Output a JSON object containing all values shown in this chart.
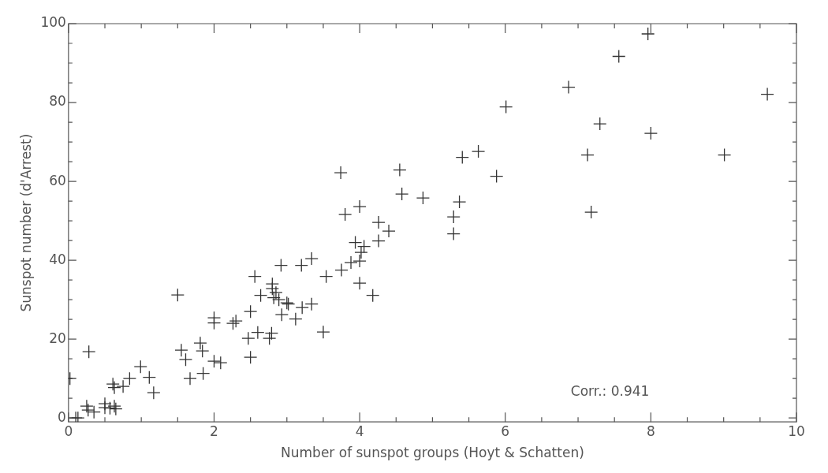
{
  "chart_data": {
    "type": "scatter",
    "xlabel": "Number of sunspot groups (Hoyt & Schatten)",
    "ylabel": "Sunspot number (d'Arrest)",
    "annotations": [
      "Corr.: 0.941"
    ],
    "xlim": [
      0,
      10
    ],
    "ylim": [
      -1,
      100
    ],
    "xticks": [
      0,
      {
        "value": 0.5,
        "label": null
      },
      {
        "value": 1,
        "label": null
      },
      {
        "value": 1.5,
        "label": null
      },
      2,
      {
        "value": 2.5,
        "label": null
      },
      {
        "value": 3,
        "label": null
      },
      {
        "value": 3.5,
        "label": null
      },
      4,
      {
        "value": 4.5,
        "label": null
      },
      {
        "value": 5,
        "label": null
      },
      {
        "value": 5.5,
        "label": null
      },
      6,
      {
        "value": 6.5,
        "label": null
      },
      {
        "value": 7,
        "label": null
      },
      {
        "value": 7.5,
        "label": null
      },
      8,
      {
        "value": 8.5,
        "label": null
      },
      {
        "value": 9,
        "label": null
      },
      {
        "value": 9.5,
        "label": null
      },
      10
    ],
    "yticks": [
      0,
      {
        "value": 5,
        "label": null
      },
      {
        "value": 10,
        "label": null
      },
      {
        "value": 15,
        "label": null
      },
      20,
      {
        "value": 25,
        "label": null
      },
      {
        "value": 30,
        "label": null
      },
      {
        "value": 35,
        "label": null
      },
      40,
      {
        "value": 45,
        "label": null
      },
      {
        "value": 50,
        "label": null
      },
      {
        "value": 55,
        "label": null
      },
      60,
      {
        "value": 65,
        "label": null
      },
      {
        "value": 70,
        "label": null
      },
      {
        "value": 75,
        "label": null
      },
      80,
      {
        "value": 85,
        "label": null
      },
      {
        "value": 90,
        "label": null
      },
      {
        "value": 95,
        "label": null
      },
      100
    ],
    "grid": false,
    "legend": false,
    "marker": "cross",
    "series": [
      {
        "color": "#333333",
        "x": [
          0.02,
          0.1,
          0.13,
          0.25,
          0.28,
          0.27,
          0.35,
          0.5,
          0.5,
          0.57,
          0.61,
          0.63,
          0.65,
          0.63,
          0.75,
          0.84,
          0.99,
          1.11,
          1.17,
          1.5,
          1.55,
          1.61,
          1.67,
          1.81,
          1.84,
          1.85,
          2.0,
          2.0,
          2.0,
          2.09,
          2.26,
          2.3,
          2.47,
          2.5,
          2.5,
          2.56,
          2.6,
          2.64,
          2.76,
          2.79,
          2.8,
          2.8,
          2.82,
          2.85,
          2.89,
          2.92,
          2.93,
          3.0,
          3.02,
          3.12,
          3.2,
          3.21,
          3.34,
          3.34,
          3.5,
          3.54,
          3.74,
          3.75,
          3.8,
          3.88,
          3.94,
          4.0,
          4.0,
          4.0,
          4.02,
          4.06,
          4.18,
          4.26,
          4.26,
          4.4,
          4.55,
          4.58,
          4.87,
          5.29,
          5.29,
          5.37,
          5.41,
          5.63,
          5.88,
          6.01,
          6.87,
          7.13,
          7.18,
          7.3,
          7.56,
          7.96,
          8.0,
          9.01,
          9.6
        ],
        "values": [
          10,
          0,
          0,
          3,
          16.8,
          2,
          1.5,
          3.6,
          2.6,
          2.5,
          8.6,
          3,
          2.3,
          7.7,
          8,
          10,
          13,
          10.3,
          6.4,
          31.2,
          17.2,
          14.8,
          10,
          19,
          17,
          11.3,
          25.4,
          24.1,
          14.4,
          14,
          24,
          24.6,
          20.2,
          27,
          15.4,
          35.9,
          21.7,
          31.1,
          20.2,
          21.5,
          34,
          32.8,
          30.5,
          31.8,
          30,
          38.7,
          26.2,
          29.2,
          28.9,
          25.1,
          38.7,
          28,
          40.4,
          28.9,
          21.8,
          35.9,
          62.2,
          37.5,
          51.6,
          39.4,
          44.5,
          53.6,
          34.2,
          39.8,
          42,
          43.5,
          31.1,
          49.6,
          44.9,
          47.4,
          62.9,
          56.8,
          55.8,
          51,
          46.7,
          54.8,
          66.1,
          67.6,
          61.3,
          78.9,
          83.9,
          66.7,
          52.2,
          74.6,
          91.7,
          97.4,
          72.2,
          66.7,
          82.1
        ]
      }
    ]
  }
}
